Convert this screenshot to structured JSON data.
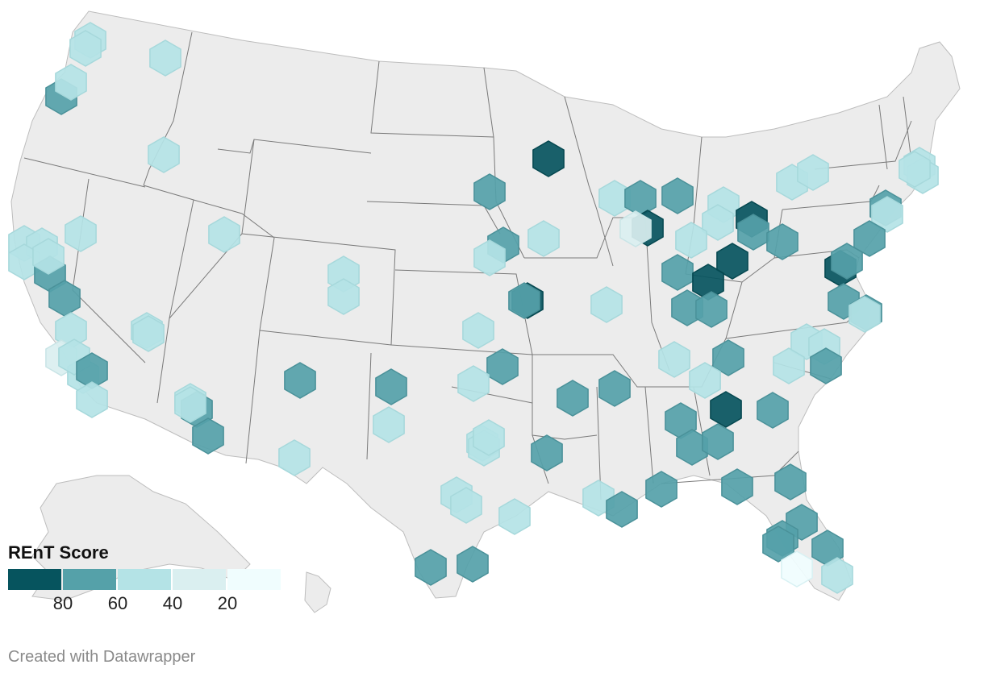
{
  "map": {
    "type": "hexbin-point-map",
    "region": "United States",
    "colors": {
      "land": "#ececec",
      "border": "#7a7a7a"
    },
    "points": [
      {
        "state": "WA",
        "level": 3
      },
      {
        "state": "WA",
        "level": 3
      },
      {
        "state": "WA",
        "level": 3
      },
      {
        "state": "WA",
        "level": 2
      },
      {
        "state": "WA",
        "level": 3
      },
      {
        "state": "ID",
        "level": 3
      },
      {
        "state": "MN",
        "level": 1
      },
      {
        "state": "IA",
        "level": 2
      },
      {
        "state": "WI",
        "level": 3
      },
      {
        "state": "WI",
        "level": 2
      },
      {
        "state": "IL",
        "level": 1
      },
      {
        "state": "IL",
        "level": 4
      },
      {
        "state": "MI",
        "level": 2
      },
      {
        "state": "NE",
        "level": 2
      },
      {
        "state": "NE",
        "level": 3
      },
      {
        "state": "IA",
        "level": 3
      },
      {
        "state": "MO",
        "level": 1
      },
      {
        "state": "MO",
        "level": 2
      },
      {
        "state": "KS",
        "level": 3
      },
      {
        "state": "MO",
        "level": 3
      },
      {
        "state": "OH",
        "level": 3
      },
      {
        "state": "OH",
        "level": 3
      },
      {
        "state": "OH",
        "level": 1
      },
      {
        "state": "OH",
        "level": 2
      },
      {
        "state": "OH",
        "level": 1
      },
      {
        "state": "IN",
        "level": 2
      },
      {
        "state": "IN",
        "level": 1
      },
      {
        "state": "KY",
        "level": 2
      },
      {
        "state": "KY",
        "level": 2
      },
      {
        "state": "IN",
        "level": 3
      },
      {
        "state": "PA",
        "level": 2
      },
      {
        "state": "NY",
        "level": 3
      },
      {
        "state": "NY",
        "level": 3
      },
      {
        "state": "MA",
        "level": 3
      },
      {
        "state": "MA",
        "level": 3
      },
      {
        "state": "MA",
        "level": 3
      },
      {
        "state": "NY",
        "level": 2
      },
      {
        "state": "NY",
        "level": 3
      },
      {
        "state": "NJ",
        "level": 2
      },
      {
        "state": "MD",
        "level": 1
      },
      {
        "state": "MD",
        "level": 2
      },
      {
        "state": "VA",
        "level": 2
      },
      {
        "state": "VA",
        "level": 2
      },
      {
        "state": "VA",
        "level": 3
      },
      {
        "state": "NC",
        "level": 3
      },
      {
        "state": "NC",
        "level": 3
      },
      {
        "state": "NC",
        "level": 3
      },
      {
        "state": "NC",
        "level": 2
      },
      {
        "state": "TN",
        "level": 2
      },
      {
        "state": "TN",
        "level": 3
      },
      {
        "state": "TN",
        "level": 3
      },
      {
        "state": "GA",
        "level": 1
      },
      {
        "state": "SC",
        "level": 2
      },
      {
        "state": "AL",
        "level": 2
      },
      {
        "state": "AL",
        "level": 2
      },
      {
        "state": "GA",
        "level": 2
      },
      {
        "state": "AR",
        "level": 2
      },
      {
        "state": "TN",
        "level": 2
      },
      {
        "state": "MS",
        "level": 2
      },
      {
        "state": "AL",
        "level": 2
      },
      {
        "state": "GA",
        "level": 2
      },
      {
        "state": "FL",
        "level": 2
      },
      {
        "state": "FL",
        "level": 2
      },
      {
        "state": "FL",
        "level": 2
      },
      {
        "state": "FL",
        "level": 2
      },
      {
        "state": "FL",
        "level": 2
      },
      {
        "state": "FL",
        "level": 3
      },
      {
        "state": "FL",
        "level": 5
      },
      {
        "state": "LA",
        "level": 3
      },
      {
        "state": "LA",
        "level": 2
      },
      {
        "state": "OK",
        "level": 2
      },
      {
        "state": "OK",
        "level": 3
      },
      {
        "state": "TX",
        "level": 2
      },
      {
        "state": "TX",
        "level": 3
      },
      {
        "state": "TX",
        "level": 3
      },
      {
        "state": "TX",
        "level": 3
      },
      {
        "state": "TX",
        "level": 3
      },
      {
        "state": "TX",
        "level": 3
      },
      {
        "state": "TX",
        "level": 2
      },
      {
        "state": "TX",
        "level": 2
      },
      {
        "state": "NM",
        "level": 2
      },
      {
        "state": "TX",
        "level": 3
      },
      {
        "state": "CO",
        "level": 3
      },
      {
        "state": "CO",
        "level": 3
      },
      {
        "state": "UT",
        "level": 3
      },
      {
        "state": "NV",
        "level": 3
      },
      {
        "state": "NV",
        "level": 3
      },
      {
        "state": "AZ",
        "level": 3
      },
      {
        "state": "AZ",
        "level": 3
      },
      {
        "state": "AZ",
        "level": 3
      },
      {
        "state": "AZ",
        "level": 3
      },
      {
        "state": "CA",
        "level": 2
      },
      {
        "state": "CA",
        "level": 2
      },
      {
        "state": "CA",
        "level": 3
      },
      {
        "state": "CA",
        "level": 3
      },
      {
        "state": "CA",
        "level": 3
      },
      {
        "state": "CA",
        "level": 3
      },
      {
        "state": "CA",
        "level": 2
      },
      {
        "state": "CA",
        "level": 2
      },
      {
        "state": "CA",
        "level": 3
      },
      {
        "state": "CA",
        "level": 3
      },
      {
        "state": "CA",
        "level": 4
      },
      {
        "state": "CA",
        "level": 3
      },
      {
        "state": "CA",
        "level": 3
      },
      {
        "state": "OR",
        "level": 2
      },
      {
        "state": "OR",
        "level": 3
      }
    ]
  },
  "legend": {
    "title": "REnT Score",
    "bins": [
      {
        "color": "#06545e"
      },
      {
        "color": "#55a1a9"
      },
      {
        "color": "#b4e3e6"
      },
      {
        "color": "#daeff0"
      },
      {
        "color": "#f0fdfe"
      }
    ],
    "ticks": [
      "80",
      "60",
      "40",
      "20"
    ]
  },
  "credit": "Created with Datawrapper"
}
